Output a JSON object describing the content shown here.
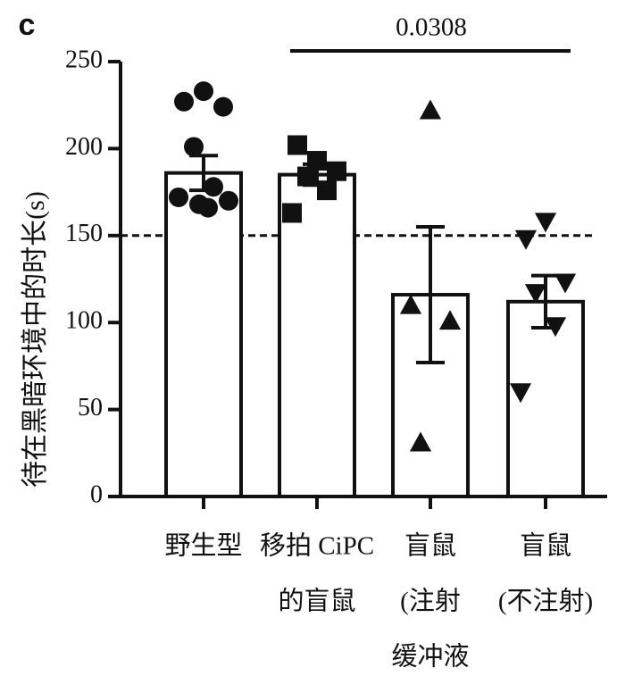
{
  "chart_data": {
    "type": "bar",
    "panel_label": "c",
    "ylabel": "待在黑暗环境中的时长(s)",
    "categories": [
      [
        "野生型"
      ],
      [
        "移拍 CiPC",
        "的盲鼠"
      ],
      [
        "盲鼠",
        "(注射",
        "缓冲液"
      ],
      [
        "盲鼠",
        "(不注射)"
      ]
    ],
    "values": [
      186,
      185,
      116,
      112
    ],
    "errors": [
      10,
      6,
      39,
      15
    ],
    "points": [
      [
        233,
        227,
        224,
        201,
        178,
        172,
        170,
        168,
        166
      ],
      [
        193,
        202,
        187,
        184,
        176,
        163
      ],
      [
        222,
        110,
        101,
        31
      ],
      [
        158,
        148,
        123,
        117,
        98,
        60
      ]
    ],
    "markers": [
      "circle",
      "square",
      "triangle-up",
      "triangle-down"
    ],
    "color": "#111111",
    "reference_line": 150,
    "annotation": {
      "text": "0.0308",
      "from": 1,
      "to": 3
    },
    "ylim": [
      0,
      250
    ],
    "yticks": [
      0,
      50,
      100,
      150,
      200,
      250
    ]
  }
}
